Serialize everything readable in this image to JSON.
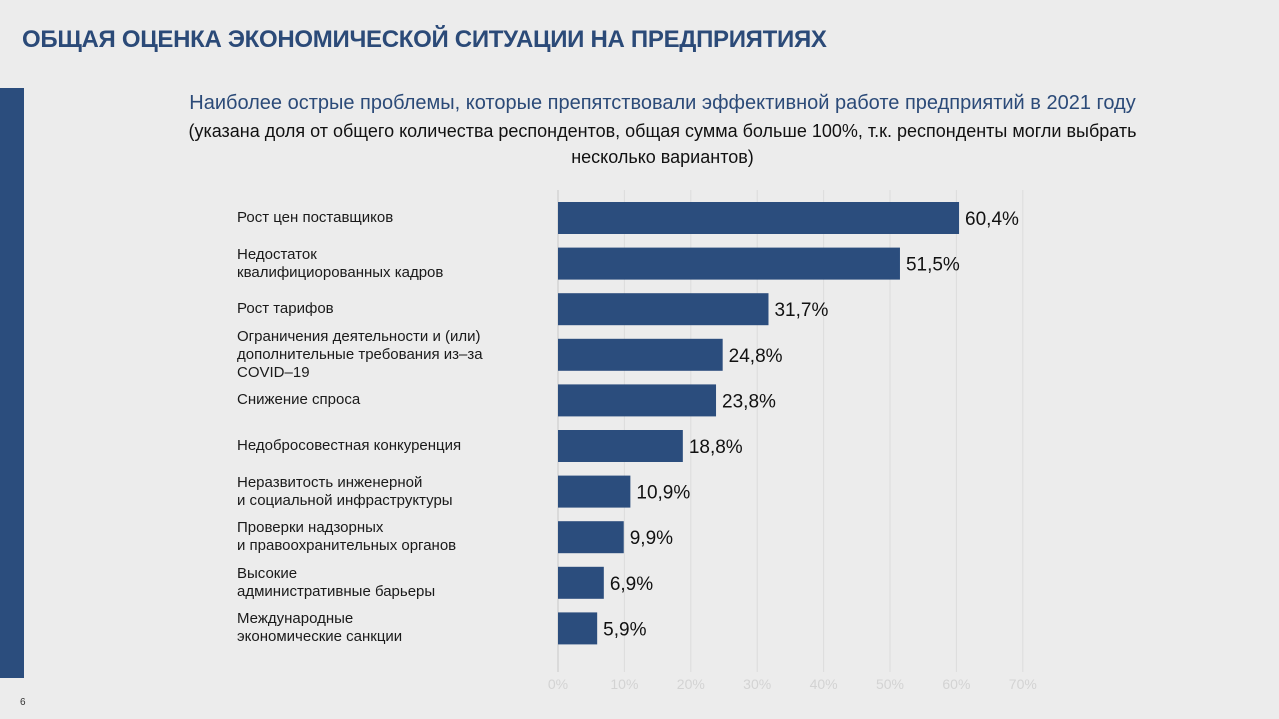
{
  "header": {
    "title": "ОБЩАЯ ОЦЕНКА ЭКОНОМИЧЕСКОЙ СИТУАЦИИ НА ПРЕДПРИЯТИЯХ",
    "page_number": "6"
  },
  "colors": {
    "accent": "#2b4d7d",
    "title": "#2b4a78",
    "background": "#ececec"
  },
  "chart_data": {
    "type": "bar",
    "orientation": "horizontal",
    "title": "Наиболее острые проблемы, которые препятствовали эффективной работе предприятий в 2021 году",
    "subtitle_lines": [
      "(указана доля от общего количества респондентов, общая сумма больше 100%, т.к. респонденты могли выбрать",
      "несколько вариантов)"
    ],
    "categories": [
      "Рост цен поставщиков",
      "Недостаток квалифициорованных кадров",
      "Рост тарифов",
      "Ограничения деятельности и (или) дополнительные требования из–за COVID–19",
      "Снижение спроса",
      "Недобросовестная конкуренция",
      "Неразвитость инженерной и социальной инфраструктуры",
      "Проверки надзорных и правоохранительных органов",
      "Высокие административные барьеры",
      "Международные экономические санкции"
    ],
    "label_lines": [
      [
        "Рост цен поставщиков"
      ],
      [
        "Недостаток",
        "квалифициорованных кадров"
      ],
      [
        "Рост тарифов"
      ],
      [
        "Ограничения деятельности и (или)",
        "дополнительные требования из–за",
        "COVID–19"
      ],
      [
        "Снижение спроса"
      ],
      [
        "Недобросовестная конкуренция"
      ],
      [
        "Неразвитость инженерной",
        "и социальной инфраструктуры"
      ],
      [
        "Проверки надзорных",
        "и правоохранительных органов"
      ],
      [
        "Высокие",
        "административные барьеры"
      ],
      [
        "Международные",
        "экономические санкции"
      ]
    ],
    "values": [
      60.4,
      51.5,
      31.7,
      24.8,
      23.8,
      18.8,
      10.9,
      9.9,
      6.9,
      5.9
    ],
    "value_labels": [
      "60,4%",
      "51,5%",
      "31,7%",
      "24,8%",
      "23,8%",
      "18,8%",
      "10,9%",
      "9,9%",
      "6,9%",
      "5,9%"
    ],
    "xlim": [
      0,
      70
    ],
    "xticks": [
      0,
      10,
      20,
      30,
      40,
      50,
      60,
      70
    ],
    "xtick_labels": [
      "0%",
      "10%",
      "20%",
      "30%",
      "40%",
      "50%",
      "60%",
      "70%"
    ],
    "grid": true,
    "bar_color": "#2b4d7d"
  }
}
